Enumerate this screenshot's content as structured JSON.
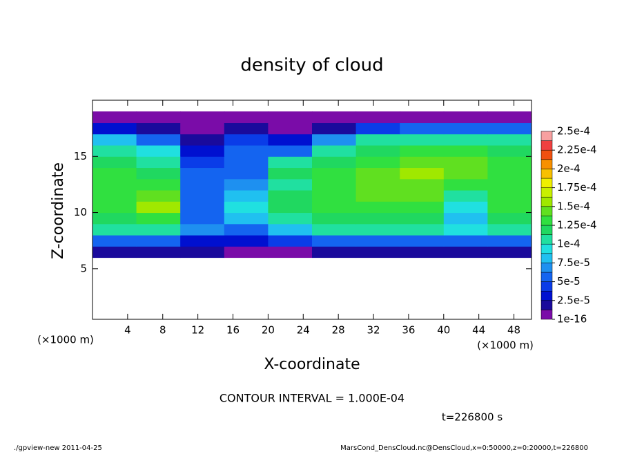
{
  "chart_data": {
    "type": "contourf",
    "title": "density of cloud",
    "xlabel": "X-coordinate",
    "ylabel": "Z-coordinate",
    "xunit": "(×1000 m)",
    "yunit": "(×1000 m)",
    "note": "CONTOUR INTERVAL = 1.000E-04",
    "time": "t=226800 s",
    "footer_left": "./gpview-new   2011-04-25",
    "footer_right": "MarsCond_DensCloud.nc@DensCloud,x=0:50000,z=0:20000,t=226800",
    "xlim": [
      0,
      50
    ],
    "ylim": [
      0.5,
      20
    ],
    "xticks": [
      4,
      8,
      12,
      16,
      20,
      24,
      28,
      32,
      36,
      40,
      44,
      48
    ],
    "yticks": [
      5,
      10,
      15
    ],
    "x": [
      2.5,
      7.5,
      12.5,
      17.5,
      22.5,
      27.5,
      32.5,
      37.5,
      42.5,
      47.5
    ],
    "y": [
      6.5,
      7.5,
      8.5,
      9.5,
      10.5,
      11.5,
      12.5,
      13.5,
      14.5,
      15.5,
      16.5,
      17.5,
      18.5
    ],
    "z": [
      [
        2e-05,
        2e-05,
        2e-05,
        1e-05,
        1e-05,
        2e-05,
        2e-05,
        2e-05,
        2e-05,
        2e-05
      ],
      [
        6e-05,
        6e-05,
        3e-05,
        3e-05,
        4e-05,
        6e-05,
        6e-05,
        6e-05,
        6e-05,
        6e-05
      ],
      [
        0.0001,
        0.0001,
        7e-05,
        6e-05,
        8e-05,
        0.0001,
        0.0001,
        0.0001,
        9e-05,
        0.0001
      ],
      [
        0.00012,
        0.00013,
        6e-05,
        8e-05,
        0.00011,
        0.00012,
        0.00012,
        0.00012,
        8e-05,
        0.00012
      ],
      [
        0.00013,
        0.00015,
        5e-05,
        9e-05,
        0.00012,
        0.00013,
        0.00013,
        0.00013,
        9e-05,
        0.00013
      ],
      [
        0.00013,
        0.00014,
        6e-05,
        8e-05,
        0.00012,
        0.00013,
        0.00014,
        0.00014,
        0.00011,
        0.00013
      ],
      [
        0.00013,
        0.00013,
        5e-05,
        7e-05,
        0.00011,
        0.00013,
        0.00014,
        0.00014,
        0.00013,
        0.00013
      ],
      [
        0.00013,
        0.00012,
        6e-05,
        6e-05,
        0.00012,
        0.00013,
        0.00014,
        0.00015,
        0.00014,
        0.00013
      ],
      [
        0.00012,
        0.00011,
        4e-05,
        6e-05,
        0.00011,
        0.00012,
        0.00013,
        0.00014,
        0.00014,
        0.00013
      ],
      [
        0.00011,
        9e-05,
        3e-05,
        5e-05,
        6e-05,
        0.00011,
        0.00012,
        0.00013,
        0.00013,
        0.00012
      ],
      [
        8e-05,
        5e-05,
        2e-05,
        4e-05,
        3e-05,
        7e-05,
        0.0001,
        0.00011,
        0.00011,
        0.0001
      ],
      [
        3e-05,
        2e-05,
        1e-05,
        2e-05,
        1e-05,
        2e-05,
        4e-05,
        5e-05,
        5e-05,
        5e-05
      ],
      [
        5e-06,
        5e-06,
        5e-06,
        5e-06,
        3e-06,
        3e-06,
        3e-06,
        5e-06,
        5e-06,
        5e-06
      ]
    ],
    "levels": [
      1e-16,
      1.25e-05,
      2.5e-05,
      3.75e-05,
      5e-05,
      6.25e-05,
      7.5e-05,
      8.75e-05,
      0.0001,
      0.0001125,
      0.000125,
      0.0001375,
      0.00015,
      0.0001625,
      0.000175,
      0.0001875,
      0.0002,
      0.0002125,
      0.000225,
      0.0002375,
      0.00025
    ],
    "colors": [
      "#7a0ca8",
      "#1a0a9c",
      "#0010d0",
      "#0a3ce8",
      "#1464f0",
      "#1e90f0",
      "#20c0f0",
      "#20e0e0",
      "#20e0a0",
      "#20d860",
      "#30e040",
      "#60e020",
      "#a0e800",
      "#c8f000",
      "#f0f000",
      "#f8c000",
      "#f89000",
      "#f05010",
      "#f04040",
      "#f8a0a0"
    ],
    "colorbar_ticks": [
      {
        "value": 1e-16,
        "label": "1e-16"
      },
      {
        "value": 2.5e-05,
        "label": "2.5e-5"
      },
      {
        "value": 5e-05,
        "label": "5e-5"
      },
      {
        "value": 7.5e-05,
        "label": "7.5e-5"
      },
      {
        "value": 0.0001,
        "label": "1e-4"
      },
      {
        "value": 0.000125,
        "label": "1.25e-4"
      },
      {
        "value": 0.00015,
        "label": "1.5e-4"
      },
      {
        "value": 0.000175,
        "label": "1.75e-4"
      },
      {
        "value": 0.0002,
        "label": "2e-4"
      },
      {
        "value": 0.000225,
        "label": "2.25e-4"
      },
      {
        "value": 0.00025,
        "label": "2.5e-4"
      }
    ]
  }
}
